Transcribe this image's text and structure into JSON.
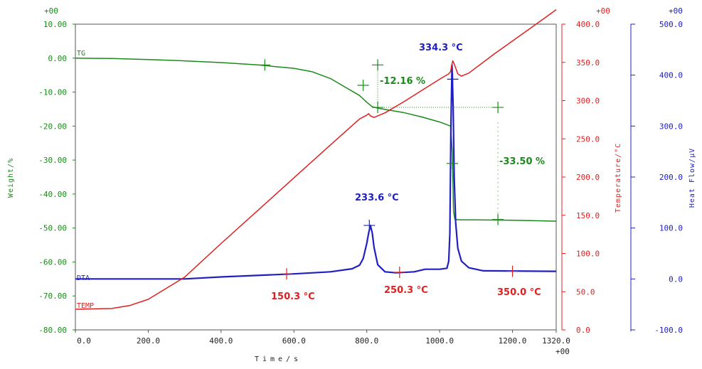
{
  "chart_data": {
    "type": "line",
    "xlabel": "Time/s",
    "x_ticks": [
      "0.0",
      "200.0",
      "400.0",
      "600.0",
      "800.0",
      "1000.0",
      "1320.0"
    ],
    "x_ticks_extra": [
      "1200.0"
    ],
    "x_exponent": "+00",
    "xlim": [
      0,
      1320
    ],
    "axes": {
      "weight": {
        "label": "Weight/%",
        "exponent": "+00",
        "color": "#1a8a1a",
        "ticks": [
          "10.00",
          "0.00",
          "-10.00",
          "-20.00",
          "-30.00",
          "-40.00",
          "-50.00",
          "-60.00",
          "-70.00",
          "-80.00"
        ],
        "lim": [
          -80,
          10
        ]
      },
      "temperature": {
        "label": "Temperature/°C",
        "exponent": "+00",
        "color": "#e02020",
        "ticks": [
          "400.0",
          "350.0",
          "300.0",
          "250.0",
          "200.0",
          "150.0",
          "100.0",
          "50.0",
          "0.0"
        ],
        "lim": [
          0,
          400
        ]
      },
      "heatflow": {
        "label": "Heat Flow/µV",
        "exponent": "+00",
        "color": "#2020c0",
        "ticks": [
          "500.0",
          "400.0",
          "300.0",
          "200.0",
          "100.0",
          "0.0",
          "-100.0"
        ],
        "lim": [
          -100,
          500
        ]
      }
    },
    "series": [
      {
        "name": "TG",
        "axis": "weight",
        "color": "#1a8a1a",
        "x": [
          0,
          100,
          200,
          300,
          400,
          500,
          600,
          650,
          700,
          740,
          780,
          800,
          815,
          825,
          835,
          850,
          900,
          950,
          1000,
          1030,
          1035,
          1038,
          1042,
          1060,
          1100,
          1200,
          1320
        ],
        "y": [
          0,
          -0.1,
          -0.4,
          -0.8,
          -1.3,
          -2,
          -3,
          -4,
          -6,
          -8.5,
          -11,
          -13,
          -14.3,
          -14.6,
          -14.8,
          -15.1,
          -16,
          -17.3,
          -18.8,
          -20,
          -28,
          -45,
          -47.5,
          -47.6,
          -47.6,
          -47.7,
          -48
        ]
      },
      {
        "name": "DTA",
        "axis": "heatflow",
        "color": "#2020c0",
        "x": [
          0,
          300,
          400,
          600,
          700,
          760,
          780,
          790,
          800,
          805,
          810,
          815,
          820,
          830,
          850,
          880,
          930,
          960,
          1000,
          1020,
          1025,
          1028,
          1031,
          1034,
          1037,
          1040,
          1044,
          1050,
          1060,
          1080,
          1120,
          1320
        ],
        "y": [
          0,
          0,
          4,
          10,
          14,
          20,
          27,
          40,
          70,
          90,
          105,
          90,
          62,
          28,
          14,
          12,
          14,
          19,
          19,
          21,
          35,
          90,
          300,
          420,
          340,
          200,
          110,
          60,
          35,
          22,
          16,
          15
        ]
      },
      {
        "name": "TEMP",
        "axis": "temperature",
        "color": "#e02020",
        "x": [
          0,
          100,
          150,
          200,
          300,
          400,
          500,
          600,
          700,
          780,
          800,
          805,
          810,
          820,
          850,
          900,
          950,
          1000,
          1025,
          1030,
          1033,
          1036,
          1040,
          1050,
          1060,
          1080,
          1150,
          1250,
          1320
        ],
        "y": [
          27,
          28,
          32,
          40,
          69,
          113,
          156,
          199,
          242,
          276,
          281,
          283,
          280,
          278,
          284,
          298,
          313,
          328,
          335,
          338,
          346,
          352,
          348,
          335,
          332,
          336,
          361,
          395,
          419
        ]
      }
    ],
    "annotations": [
      {
        "text": "334.3 °C",
        "color": "#2020c0"
      },
      {
        "text": "233.6 °C",
        "color": "#2020c0"
      },
      {
        "text": "-12.16 %",
        "color": "#1a8a1a"
      },
      {
        "text": "-33.50 %",
        "color": "#1a8a1a"
      },
      {
        "text": "150.3 °C",
        "color": "#e02020"
      },
      {
        "text": "250.3 °C",
        "color": "#e02020"
      },
      {
        "text": "350.0 °C",
        "color": "#e02020"
      }
    ],
    "grid": false,
    "legend": "curve labels at left"
  }
}
